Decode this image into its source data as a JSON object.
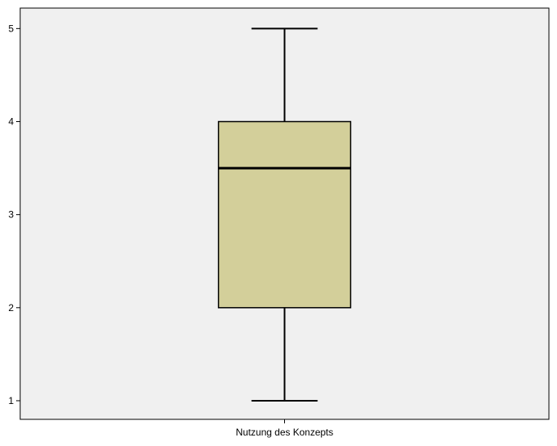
{
  "chart_data": {
    "type": "boxplot",
    "categories": [
      "Nutzung des Konzepts"
    ],
    "boxes": [
      {
        "category": "Nutzung des Konzepts",
        "min": 1,
        "q1": 2,
        "median": 3.5,
        "q3": 4,
        "max": 5
      }
    ],
    "yticks": [
      "1",
      "2",
      "3",
      "4",
      "5"
    ],
    "ylim": [
      0.8,
      5.22
    ],
    "grid": false,
    "colors": {
      "plot_background": "#f0f0f0",
      "box_fill": "#d3cf9a",
      "line": "#000000"
    }
  }
}
